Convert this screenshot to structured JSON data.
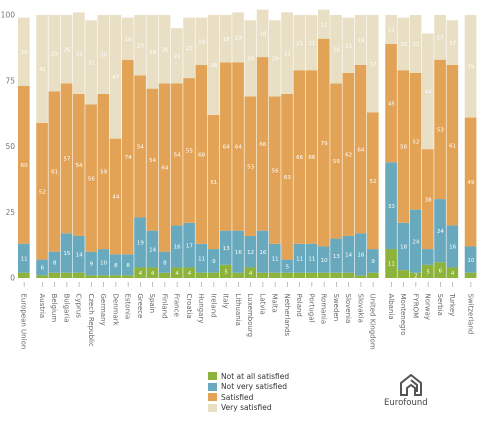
{
  "chart_data": {
    "type": "bar",
    "stacked": true,
    "ylim": [
      0,
      100
    ],
    "yticks": [
      0,
      25,
      50,
      75,
      100
    ],
    "colors": {
      "not_at_all": "#8db33a",
      "not_very": "#68a9bd",
      "satisfied": "#e2a356",
      "very": "#e8dfc4"
    },
    "groups": [
      {
        "categories": [
          "European Union"
        ],
        "gap_after": true
      },
      {
        "categories": [
          "Austria",
          "Belgium",
          "Bulgaria",
          "Cyprus",
          "Czech Republic",
          "Germany",
          "Denmark",
          "Estonia",
          "Greece",
          "Spain",
          "Finland",
          "France",
          "Croatia",
          "Hungary",
          "Ireland",
          "Italy",
          "Lithuania",
          "Luxembourg",
          "Latvia",
          "Malta",
          "Netherlands",
          "Poland",
          "Portugal",
          "Romania",
          "Sweden",
          "Slovenia",
          "Slovakia",
          "United Kingdom"
        ],
        "gap_after": true
      },
      {
        "categories": [
          "Albania",
          "Montenegro",
          "FYROM",
          "Norway",
          "Serbia",
          "Turkey"
        ],
        "gap_after": true
      },
      {
        "categories": [
          "Switzerland"
        ]
      }
    ],
    "categories": [
      "European Union",
      "Austria",
      "Belgium",
      "Bulgaria",
      "Cyprus",
      "Czech Republic",
      "Germany",
      "Denmark",
      "Estonia",
      "Greece",
      "Spain",
      "Finland",
      "France",
      "Croatia",
      "Hungary",
      "Ireland",
      "Italy",
      "Lithuania",
      "Luxembourg",
      "Latvia",
      "Malta",
      "Netherlands",
      "Poland",
      "Portugal",
      "Romania",
      "Sweden",
      "Slovenia",
      "Slovakia",
      "United Kingdom",
      "Albania",
      "Montenegro",
      "FYROM",
      "Norway",
      "Serbia",
      "Turkey",
      "Switzerland"
    ],
    "series": [
      {
        "key": "not_at_all",
        "name": "Not at all satisfied",
        "color": "#8db33a",
        "values": [
          2,
          1,
          2,
          2,
          2,
          1,
          1,
          1,
          1,
          4,
          4,
          2,
          4,
          4,
          2,
          2,
          5,
          2,
          4,
          2,
          2,
          2,
          2,
          2,
          2,
          2,
          2,
          1,
          2,
          11,
          3,
          2,
          5,
          6,
          4,
          2
        ],
        "labels": [
          null,
          null,
          null,
          null,
          null,
          null,
          null,
          null,
          null,
          "4",
          "4",
          null,
          "4",
          "4",
          null,
          null,
          "5",
          null,
          "4",
          null,
          null,
          null,
          null,
          null,
          null,
          null,
          null,
          null,
          null,
          "11",
          null,
          "2",
          "5",
          "6",
          "4",
          null
        ]
      },
      {
        "key": "not_very",
        "name": "Not very satisfied",
        "color": "#68a9bd",
        "values": [
          11,
          6,
          8,
          15,
          14,
          9,
          10,
          8,
          8,
          19,
          14,
          8,
          16,
          17,
          11,
          9,
          13,
          16,
          12,
          16,
          11,
          5,
          11,
          11,
          10,
          13,
          14,
          16,
          9,
          33,
          18,
          24,
          6,
          24,
          16,
          10
        ],
        "labels": [
          "11",
          "6",
          "8",
          "15",
          "14",
          "9",
          "10",
          "8",
          "8",
          "19",
          "14",
          "8",
          "16",
          "17",
          "11",
          "9",
          "13",
          "16",
          "12",
          "16",
          "11",
          "5",
          "11",
          "11",
          "10",
          "13",
          "14",
          "16",
          "9",
          "33",
          "18",
          "24",
          null,
          "24",
          "16",
          "10"
        ]
      },
      {
        "key": "satisfied",
        "name": "Satisfied",
        "color": "#e2a356",
        "values": [
          60,
          52,
          61,
          57,
          54,
          56,
          59,
          44,
          74,
          54,
          54,
          64,
          54,
          55,
          68,
          51,
          64,
          64,
          53,
          66,
          56,
          63,
          66,
          66,
          79,
          59,
          62,
          64,
          52,
          45,
          58,
          52,
          38,
          53,
          61,
          49
        ],
        "labels": [
          "60",
          "52",
          "61",
          "57",
          "54",
          "56",
          "59",
          "44",
          "74",
          "54",
          "54",
          "64",
          "54",
          "55",
          "68",
          "51",
          "64",
          "64",
          "53",
          "66",
          "56",
          "63",
          "66",
          "66",
          "79",
          "59",
          "62",
          "64",
          "52",
          "45",
          "58",
          "52",
          "38",
          "53",
          "61",
          "49"
        ]
      },
      {
        "key": "very",
        "name": "Very satisfied",
        "color": "#e8dfc4",
        "values": [
          26,
          41,
          29,
          26,
          31,
          32,
          30,
          47,
          16,
          23,
          28,
          26,
          21,
          23,
          18,
          38,
          18,
          19,
          29,
          18,
          29,
          31,
          21,
          21,
          11,
          26,
          21,
          19,
          37,
          11,
          20,
          22,
          44,
          17,
          17,
          39
        ],
        "labels": [
          "26",
          "41",
          "29",
          "26",
          "31",
          "32",
          "30",
          "47",
          "16",
          "23",
          "28",
          "26",
          "21",
          "23",
          "18",
          "38",
          "18",
          "19",
          "29",
          "18",
          "29",
          "31",
          "21",
          "21",
          "11",
          "26",
          "21",
          "19",
          "37",
          "11",
          "20",
          "22",
          "44",
          "17",
          "17",
          "39"
        ]
      }
    ]
  },
  "legend": {
    "items": [
      {
        "label": "Not at all satisfied",
        "color": "#8db33a"
      },
      {
        "label": "Not very satisfied",
        "color": "#68a9bd"
      },
      {
        "label": "Satisfied",
        "color": "#e2a356"
      },
      {
        "label": "Very satisfied",
        "color": "#e8dfc4"
      }
    ]
  },
  "logo": {
    "text": "Eurofound",
    "icon": "eurofound-logo-icon"
  }
}
